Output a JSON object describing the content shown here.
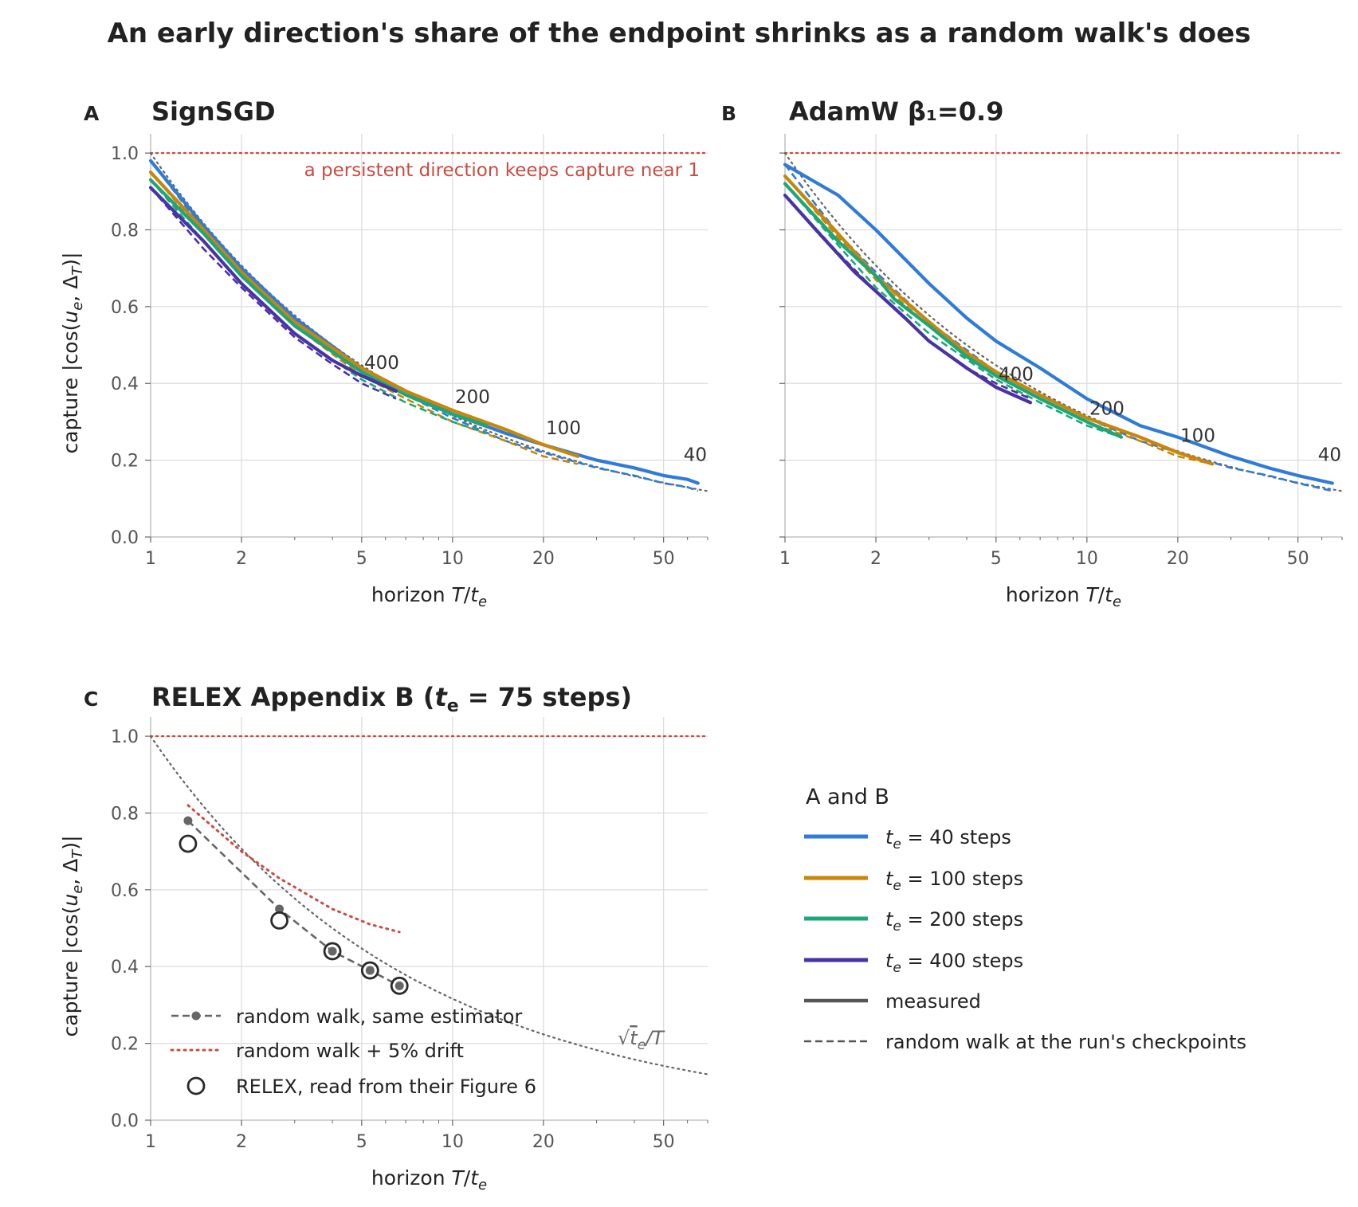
{
  "figure": {
    "title": "An early direction's share of the endpoint shrinks as a random walk's does"
  },
  "colors": {
    "te40": "#2f7bd9",
    "te100": "#c98609",
    "te200": "#1aa87a",
    "te400": "#4a32a6",
    "reference": "#c94c43",
    "guide": "#666666",
    "grid": "#dddddd"
  },
  "axes": {
    "x_label_main": "horizon ",
    "x_label_var": "T",
    "x_label_sep": "/",
    "x_label_var2": "t",
    "x_label_sub": "e",
    "y_label_pre": "capture |cos(",
    "y_label_u": "u",
    "y_label_sub_e": "e",
    "y_label_mid": ", Δ",
    "y_label_sub_T": "T",
    "y_label_post": ")|",
    "x_scale": "log",
    "x_range": [
      1,
      70
    ],
    "y_range": [
      0,
      1.05
    ],
    "x_ticks": [
      "1",
      "2",
      "5",
      "10",
      "20",
      "50"
    ],
    "x_tick_values": [
      1,
      2,
      5,
      10,
      20,
      50
    ],
    "y_ticks": [
      "0.0",
      "0.2",
      "0.4",
      "0.6",
      "0.8",
      "1.0"
    ],
    "y_tick_values": [
      0,
      0.2,
      0.4,
      0.6,
      0.8,
      1.0
    ]
  },
  "chart_data": [
    {
      "type": "line",
      "panel_letter": "A",
      "title": "SignSGD",
      "annotation": "a persistent direction keeps capture near 1",
      "reference_y": 1.0,
      "series": [
        {
          "te": "40",
          "end_label": "40",
          "measured": {
            "x": [
              1,
              1.5,
              2,
              3,
              5,
              7,
              10,
              15,
              20,
              30,
              40,
              50,
              60,
              65
            ],
            "y": [
              0.98,
              0.81,
              0.7,
              0.57,
              0.44,
              0.38,
              0.32,
              0.27,
              0.24,
              0.2,
              0.18,
              0.16,
              0.15,
              0.14
            ]
          },
          "random_walk": {
            "x": [
              1,
              1.5,
              2,
              3,
              5,
              7,
              10,
              15,
              20,
              30,
              40,
              50,
              60,
              65
            ],
            "y": [
              0.98,
              0.8,
              0.69,
              0.56,
              0.43,
              0.37,
              0.31,
              0.25,
              0.22,
              0.18,
              0.16,
              0.14,
              0.13,
              0.12
            ]
          }
        },
        {
          "te": "100",
          "end_label": "100",
          "measured": {
            "x": [
              1,
              1.5,
              2,
              3,
              5,
              7,
              10,
              15,
              20,
              26
            ],
            "y": [
              0.95,
              0.8,
              0.69,
              0.56,
              0.44,
              0.38,
              0.33,
              0.28,
              0.24,
              0.21
            ]
          },
          "random_walk": {
            "x": [
              1,
              1.5,
              2,
              3,
              5,
              7,
              10,
              15,
              20,
              26
            ],
            "y": [
              0.95,
              0.79,
              0.68,
              0.55,
              0.42,
              0.36,
              0.3,
              0.25,
              0.21,
              0.19
            ]
          }
        },
        {
          "te": "200",
          "end_label": "200",
          "measured": {
            "x": [
              1,
              1.5,
              2,
              3,
              5,
              7,
              10,
              13
            ],
            "y": [
              0.93,
              0.79,
              0.68,
              0.55,
              0.43,
              0.37,
              0.32,
              0.29
            ]
          },
          "random_walk": {
            "x": [
              1,
              1.5,
              2,
              3,
              5,
              7,
              10,
              13
            ],
            "y": [
              0.93,
              0.77,
              0.66,
              0.53,
              0.41,
              0.35,
              0.3,
              0.27
            ]
          }
        },
        {
          "te": "400",
          "end_label": "400",
          "measured": {
            "x": [
              1,
              1.5,
              2,
              3,
              4,
              5,
              6.5
            ],
            "y": [
              0.91,
              0.77,
              0.66,
              0.53,
              0.46,
              0.42,
              0.38
            ]
          },
          "random_walk": {
            "x": [
              1,
              1.5,
              2,
              3,
              4,
              5,
              6.5
            ],
            "y": [
              0.91,
              0.75,
              0.65,
              0.52,
              0.45,
              0.4,
              0.36
            ]
          }
        }
      ]
    },
    {
      "type": "line",
      "panel_letter": "B",
      "title": "AdamW β₁=0.9",
      "reference_y": 1.0,
      "series": [
        {
          "te": "40",
          "end_label": "40",
          "measured": {
            "x": [
              1,
              1.5,
              2,
              3,
              4,
              5,
              7,
              10,
              15,
              20,
              30,
              40,
              50,
              65
            ],
            "y": [
              0.97,
              0.89,
              0.8,
              0.66,
              0.57,
              0.51,
              0.44,
              0.36,
              0.29,
              0.26,
              0.21,
              0.18,
              0.16,
              0.14
            ]
          },
          "random_walk": {
            "x": [
              1,
              1.5,
              2,
              3,
              5,
              7,
              10,
              15,
              20,
              30,
              40,
              50,
              65
            ],
            "y": [
              0.97,
              0.79,
              0.69,
              0.56,
              0.43,
              0.37,
              0.31,
              0.25,
              0.22,
              0.18,
              0.16,
              0.14,
              0.12
            ]
          }
        },
        {
          "te": "100",
          "end_label": "100",
          "measured": {
            "x": [
              1,
              1.5,
              2,
              3,
              4,
              5,
              7,
              10,
              15,
              20,
              26
            ],
            "y": [
              0.94,
              0.79,
              0.68,
              0.56,
              0.48,
              0.43,
              0.37,
              0.31,
              0.26,
              0.22,
              0.19
            ]
          },
          "random_walk": {
            "x": [
              1,
              1.5,
              2,
              3,
              5,
              7,
              10,
              15,
              20,
              26
            ],
            "y": [
              0.94,
              0.78,
              0.67,
              0.55,
              0.42,
              0.36,
              0.3,
              0.25,
              0.21,
              0.19
            ]
          }
        },
        {
          "te": "200",
          "end_label": "200",
          "measured": {
            "x": [
              1,
              1.5,
              2,
              2.3,
              3,
              4,
              5,
              7,
              10,
              13
            ],
            "y": [
              0.92,
              0.77,
              0.68,
              0.62,
              0.55,
              0.47,
              0.42,
              0.36,
              0.3,
              0.26
            ]
          },
          "random_walk": {
            "x": [
              1,
              1.5,
              2,
              3,
              5,
              7,
              10,
              13
            ],
            "y": [
              0.92,
              0.76,
              0.65,
              0.53,
              0.41,
              0.35,
              0.29,
              0.26
            ]
          }
        },
        {
          "te": "400",
          "end_label": "400",
          "measured": {
            "x": [
              1,
              1.3,
              1.7,
              2,
              2.5,
              3,
              4,
              5,
              6.5
            ],
            "y": [
              0.89,
              0.79,
              0.69,
              0.64,
              0.57,
              0.51,
              0.44,
              0.39,
              0.35
            ]
          },
          "random_walk": {
            "x": [
              1,
              1.5,
              2,
              3,
              4,
              5,
              6.5
            ],
            "y": [
              0.89,
              0.74,
              0.64,
              0.51,
              0.44,
              0.4,
              0.36
            ]
          }
        }
      ]
    },
    {
      "type": "scatter",
      "panel_letter": "C",
      "title_pre": "RELEX Appendix B (",
      "title_var": "t",
      "title_sub": "e",
      "title_post": " = 75 steps)",
      "reference_y": 1.0,
      "curve_label_root": "√",
      "curve_label_var": "t",
      "curve_label_sub": "e",
      "curve_label_post": "/T",
      "random_walk_same_estimator": {
        "x": [
          1.33,
          2.67,
          4.0,
          5.33,
          6.67
        ],
        "y": [
          0.78,
          0.55,
          0.44,
          0.39,
          0.35
        ]
      },
      "random_walk_drift": {
        "x": [
          1.33,
          2,
          2.67,
          4.0,
          5.33,
          6.67
        ],
        "y": [
          0.82,
          0.7,
          0.63,
          0.55,
          0.51,
          0.49
        ]
      },
      "relex_points": {
        "x": [
          1.33,
          2.67,
          4.0,
          5.33,
          6.67
        ],
        "y": [
          0.72,
          0.52,
          0.44,
          0.39,
          0.35
        ]
      },
      "legend": [
        {
          "key": "rw-estimator",
          "label": "random walk, same estimator"
        },
        {
          "key": "rw-drift",
          "label": "random walk + 5% drift"
        },
        {
          "key": "relex",
          "label": "RELEX, read from their Figure 6"
        }
      ]
    }
  ],
  "legend_ab": {
    "title": "A and B",
    "entries": [
      {
        "key": "te40",
        "var": "t",
        "sub": "e",
        "text": " = 40 steps"
      },
      {
        "key": "te100",
        "var": "t",
        "sub": "e",
        "text": " = 100 steps"
      },
      {
        "key": "te200",
        "var": "t",
        "sub": "e",
        "text": " = 200 steps"
      },
      {
        "key": "te400",
        "var": "t",
        "sub": "e",
        "text": " = 400 steps"
      },
      {
        "key": "measured",
        "text": "measured"
      },
      {
        "key": "random_walk",
        "text": "random walk at the run's checkpoints"
      }
    ]
  }
}
